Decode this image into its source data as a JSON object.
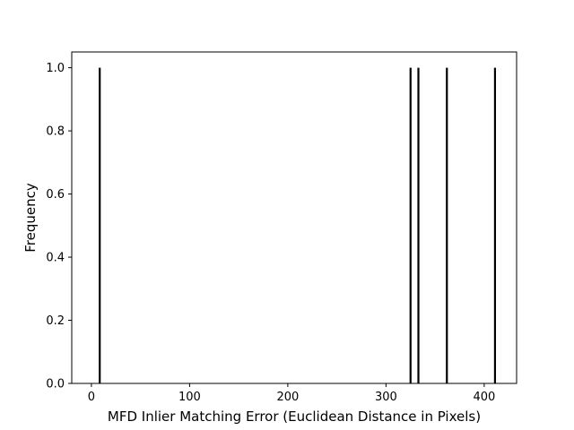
{
  "chart_data": {
    "type": "bar",
    "title": "",
    "xlabel": "MFD Inlier Matching Error (Euclidean Distance in Pixels)",
    "ylabel": "Frequency",
    "xlim": [
      -20,
      433
    ],
    "ylim": [
      0,
      1.05
    ],
    "xticks": [
      0,
      100,
      200,
      300,
      400
    ],
    "xtick_labels": [
      "0",
      "100",
      "200",
      "300",
      "400"
    ],
    "yticks": [
      0.0,
      0.2,
      0.4,
      0.6,
      0.8,
      1.0
    ],
    "ytick_labels": [
      "0.0",
      "0.2",
      "0.4",
      "0.6",
      "0.8",
      "1.0"
    ],
    "grid": false,
    "bar_color": "#000000",
    "series": [
      {
        "x": [
          8.5,
          325,
          333,
          362,
          411
        ],
        "values": [
          1,
          1,
          1,
          1,
          1
        ]
      }
    ]
  }
}
